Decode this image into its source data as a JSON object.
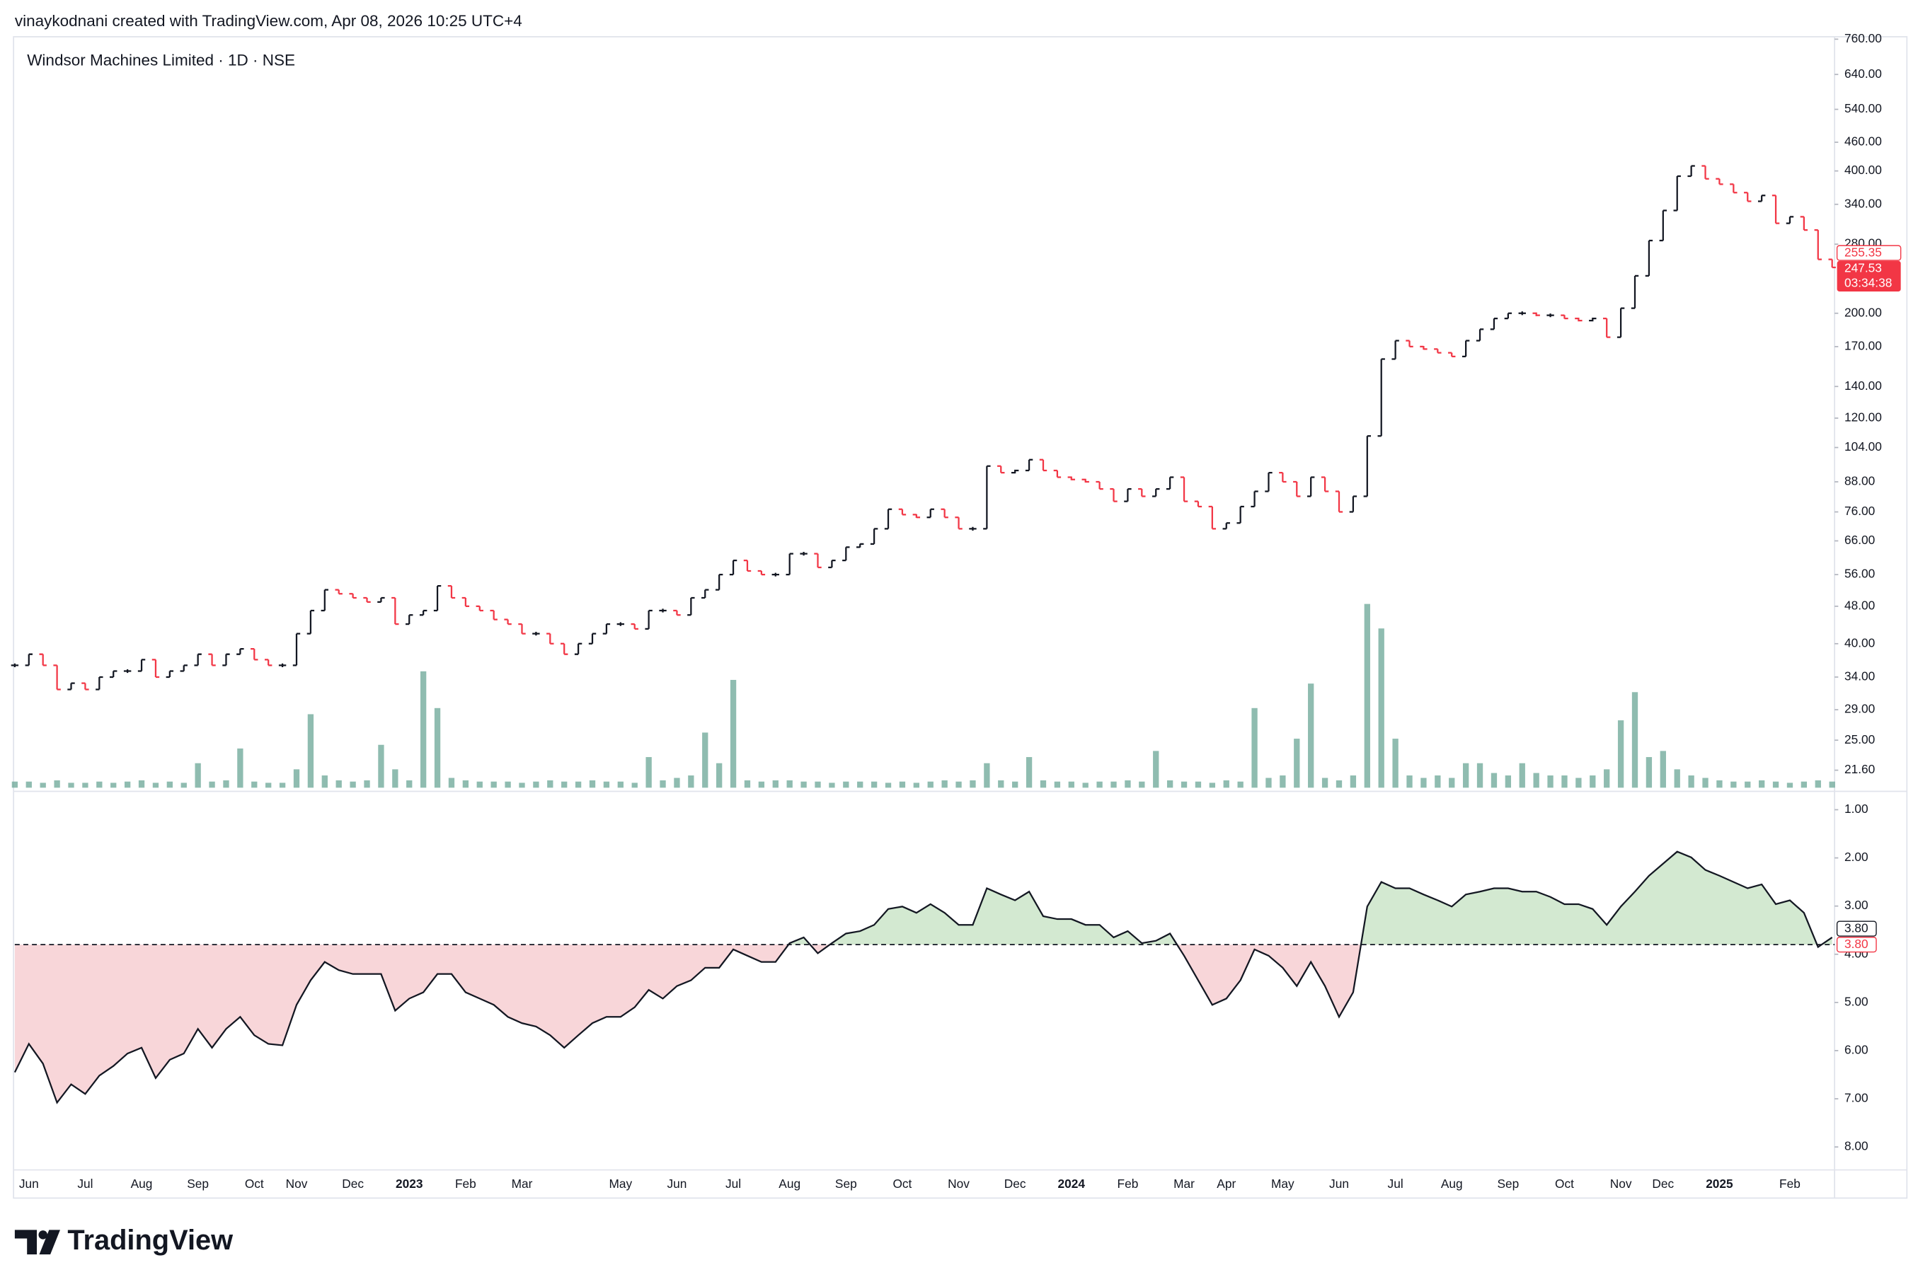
{
  "header": "vinaykodnani created with TradingView.com, Apr 08, 2026 10:25 UTC+4",
  "brand": "TradingView",
  "chart_data": [
    {
      "type": "ohlc",
      "title": "Windsor Machines Limited · 1D · NSE",
      "categories": [
        null,
        "Jun",
        null,
        null,
        null,
        "Jul",
        null,
        null,
        null,
        "Aug",
        null,
        null,
        null,
        "Sep",
        null,
        null,
        null,
        "Oct",
        null,
        null,
        "Nov",
        null,
        null,
        null,
        "Dec",
        null,
        null,
        null,
        "2023",
        null,
        null,
        null,
        "Feb",
        null,
        null,
        null,
        "Mar",
        null,
        null,
        null,
        null,
        null,
        null,
        "May",
        null,
        null,
        null,
        "Jun",
        null,
        null,
        null,
        "Jul",
        null,
        null,
        null,
        "Aug",
        null,
        null,
        null,
        "Sep",
        null,
        null,
        null,
        "Oct",
        null,
        null,
        null,
        "Nov",
        null,
        null,
        null,
        "Dec",
        null,
        null,
        null,
        "2024",
        null,
        null,
        null,
        "Feb",
        null,
        null,
        null,
        "Mar",
        null,
        null,
        "Apr",
        null,
        null,
        null,
        "May",
        null,
        null,
        null,
        "Jun",
        null,
        null,
        null,
        "Jul",
        null,
        null,
        null,
        "Aug",
        null,
        null,
        null,
        "Sep",
        null,
        null,
        null,
        "Oct",
        null,
        null,
        null,
        "Nov",
        null,
        null,
        "Dec",
        null,
        null,
        null,
        "2025",
        null,
        null,
        null,
        null,
        "Feb",
        null,
        null,
        null
      ],
      "values": [
        36,
        38,
        36,
        32,
        33,
        32,
        34,
        35,
        35,
        37,
        34,
        35,
        36,
        38,
        36,
        38,
        39,
        37,
        36,
        36,
        42,
        47,
        52,
        51,
        50,
        49,
        50,
        44,
        46,
        47,
        53,
        50,
        48,
        47,
        45,
        44,
        42,
        42,
        40,
        38,
        40,
        42,
        44,
        44,
        43,
        47,
        47,
        46,
        50,
        52,
        56,
        60,
        57,
        56,
        56,
        62,
        62,
        58,
        60,
        64,
        65,
        70,
        77,
        75,
        74,
        77,
        74,
        70,
        70,
        95,
        92,
        93,
        98,
        93,
        90,
        89,
        88,
        85,
        80,
        85,
        82,
        85,
        90,
        80,
        78,
        70,
        72,
        78,
        84,
        92,
        88,
        82,
        90,
        84,
        76,
        82,
        110,
        160,
        175,
        170,
        168,
        165,
        162,
        175,
        185,
        195,
        200,
        200,
        198,
        198,
        195,
        193,
        195,
        178,
        205,
        240,
        285,
        330,
        390,
        410,
        385,
        375,
        360,
        345,
        355,
        310,
        320,
        300,
        260,
        250
      ],
      "up_color": "#131722",
      "down_color": "#f23645",
      "volume": [
        5,
        5,
        4,
        6,
        4,
        4,
        5,
        4,
        5,
        6,
        4,
        5,
        4,
        20,
        5,
        6,
        32,
        5,
        4,
        4,
        15,
        60,
        10,
        6,
        5,
        6,
        35,
        15,
        6,
        95,
        65,
        8,
        6,
        5,
        5,
        5,
        4,
        5,
        6,
        5,
        5,
        6,
        5,
        5,
        4,
        25,
        6,
        8,
        10,
        45,
        20,
        88,
        6,
        5,
        6,
        6,
        5,
        5,
        4,
        5,
        5,
        5,
        4,
        5,
        4,
        5,
        6,
        5,
        6,
        20,
        6,
        5,
        25,
        6,
        5,
        5,
        4,
        5,
        5,
        6,
        5,
        30,
        6,
        5,
        5,
        4,
        6,
        5,
        65,
        8,
        10,
        40,
        85,
        8,
        6,
        10,
        150,
        130,
        40,
        10,
        8,
        10,
        8,
        20,
        20,
        12,
        10,
        20,
        12,
        10,
        10,
        8,
        10,
        15,
        55,
        78,
        25,
        30,
        15,
        10,
        8,
        6,
        5,
        5,
        6,
        5,
        4,
        5,
        6,
        5
      ],
      "volume_color": "#6aa595",
      "volume_lim": [
        0,
        160
      ],
      "log_scale": true,
      "ylim": [
        19.6,
        769
      ],
      "yticks": [
        {
          "value": 760,
          "label": "760.00"
        },
        {
          "value": 640,
          "label": "640.00"
        },
        {
          "value": 540,
          "label": "540.00"
        },
        {
          "value": 460,
          "label": "460.00"
        },
        {
          "value": 400,
          "label": "400.00"
        },
        {
          "value": 340,
          "label": "340.00"
        },
        {
          "value": 280,
          "label": "280.00"
        },
        {
          "value": 200,
          "label": "200.00"
        },
        {
          "value": 170,
          "label": "170.00"
        },
        {
          "value": 140,
          "label": "140.00"
        },
        {
          "value": 120,
          "label": "120.00"
        },
        {
          "value": 104,
          "label": "104.00"
        },
        {
          "value": 88,
          "label": "88.00"
        },
        {
          "value": 76,
          "label": "76.00"
        },
        {
          "value": 66,
          "label": "66.00"
        },
        {
          "value": 56,
          "label": "56.00"
        },
        {
          "value": 48,
          "label": "48.00"
        },
        {
          "value": 40,
          "label": "40.00"
        },
        {
          "value": 34,
          "label": "34.00"
        },
        {
          "value": 29,
          "label": "29.00"
        },
        {
          "value": 25,
          "label": "25.00"
        },
        {
          "value": 21.6,
          "label": "21.60"
        }
      ],
      "price_labels": [
        {
          "value": 255.35,
          "label": "255.35"
        },
        {
          "value": 247.53,
          "label": "247.53"
        }
      ],
      "countdown": "03:34:38"
    },
    {
      "type": "area",
      "values": [
        6.45,
        5.86,
        6.27,
        7.08,
        6.7,
        6.9,
        6.52,
        6.32,
        6.06,
        5.94,
        6.57,
        6.19,
        6.06,
        5.55,
        5.94,
        5.55,
        5.3,
        5.68,
        5.86,
        5.89,
        5.05,
        4.54,
        4.16,
        4.33,
        4.41,
        4.41,
        4.41,
        5.17,
        4.92,
        4.79,
        4.41,
        4.41,
        4.79,
        4.92,
        5.05,
        5.3,
        5.43,
        5.5,
        5.68,
        5.94,
        5.68,
        5.43,
        5.3,
        5.3,
        5.1,
        4.74,
        4.92,
        4.66,
        4.54,
        4.28,
        4.28,
        3.9,
        4.03,
        4.16,
        4.16,
        3.77,
        3.65,
        3.98,
        3.77,
        3.57,
        3.52,
        3.39,
        3.06,
        3.01,
        3.14,
        2.96,
        3.14,
        3.39,
        3.39,
        2.63,
        2.76,
        2.88,
        2.7,
        3.21,
        3.27,
        3.27,
        3.39,
        3.39,
        3.65,
        3.52,
        3.77,
        3.72,
        3.57,
        4.03,
        4.54,
        5.05,
        4.92,
        4.54,
        3.9,
        4.03,
        4.28,
        4.66,
        4.16,
        4.66,
        5.3,
        4.79,
        3.01,
        2.5,
        2.63,
        2.63,
        2.76,
        2.88,
        3.01,
        2.76,
        2.7,
        2.63,
        2.63,
        2.7,
        2.7,
        2.81,
        2.96,
        2.96,
        3.06,
        3.39,
        3.01,
        2.7,
        2.37,
        2.12,
        1.87,
        1.99,
        2.25,
        2.37,
        2.5,
        2.63,
        2.55,
        2.96,
        2.88,
        3.14,
        3.85,
        3.65
      ],
      "color": "#131722",
      "inverted": true,
      "ylim": [
        0.67,
        8.4
      ],
      "yticks": [
        {
          "value": 1,
          "label": "1.00"
        },
        {
          "value": 2,
          "label": "2.00"
        },
        {
          "value": 3,
          "label": "3.00"
        },
        {
          "value": 4,
          "label": "4.00"
        },
        {
          "value": 5,
          "label": "5.00"
        },
        {
          "value": 6,
          "label": "6.00"
        },
        {
          "value": 7,
          "label": "7.00"
        },
        {
          "value": 8,
          "label": "8.00"
        }
      ],
      "reference": 3.8,
      "above_color": "#d3e9d1",
      "below_color": "#f8d6d9",
      "ref_labels": [
        {
          "value": 3.8,
          "label": "3.80"
        },
        {
          "value": 3.8,
          "label": "3.80"
        }
      ]
    }
  ]
}
